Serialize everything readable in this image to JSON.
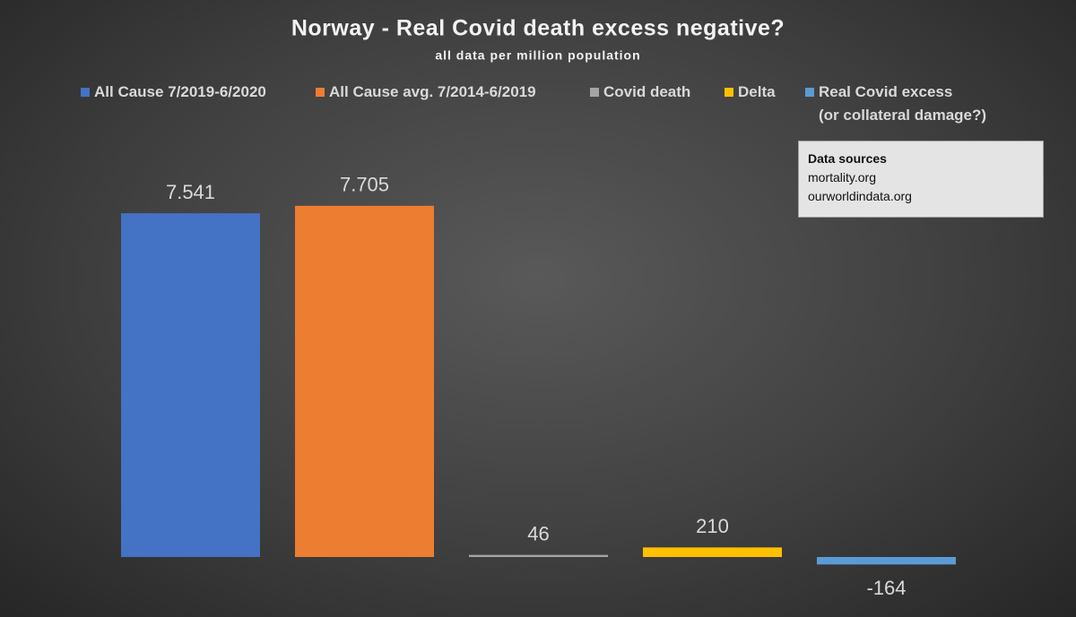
{
  "chart_data": {
    "type": "bar",
    "title": "Norway - Real Covid death excess negative?",
    "subtitle": "all data per million population",
    "series": [
      {
        "name": "All Cause 7/2019-6/2020",
        "color": "#4472c4",
        "values": [
          7541
        ],
        "value_labels": [
          "7.541"
        ]
      },
      {
        "name": "All Cause avg. 7/2014-6/2019",
        "color": "#ed7d31",
        "values": [
          7705
        ],
        "value_labels": [
          "7.705"
        ]
      },
      {
        "name": "Covid death",
        "color": "#a5a5a5",
        "values": [
          46
        ]
      },
      {
        "name": "Delta",
        "color": "#ffc000",
        "values": [
          210
        ]
      },
      {
        "name": "Real Covid excess\n(or collateral damage?)",
        "color": "#5b9bd5",
        "values": [
          -164
        ]
      }
    ],
    "legend": "top",
    "annotation": {
      "title": "Data sources",
      "lines": [
        "mortality.org",
        "ourworldindata.org"
      ]
    }
  }
}
